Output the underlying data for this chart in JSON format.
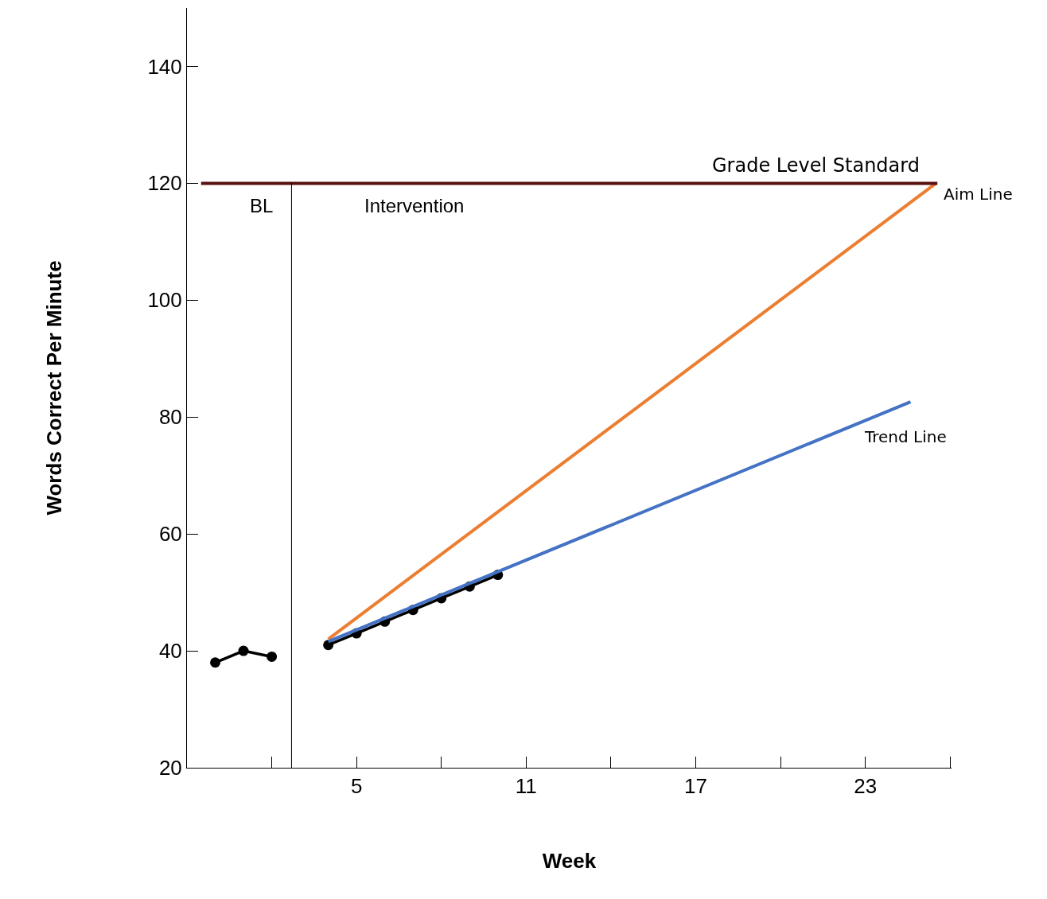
{
  "chart_data": {
    "type": "line",
    "xlabel": "Week",
    "ylabel": "Words Correct Per Minute",
    "series": [
      {
        "x": [
          0,
          1,
          2
        ],
        "values": [
          38,
          40,
          39
        ],
        "color": "#000000",
        "marker": "circle"
      },
      {
        "x": [
          4,
          5,
          6,
          7,
          8,
          9,
          10
        ],
        "values": [
          41,
          43,
          45,
          47,
          49,
          51,
          53
        ],
        "color": "#000000",
        "marker": "circle"
      },
      {
        "name": "Aim Line",
        "x": [
          4,
          25.5
        ],
        "values": [
          42,
          120
        ],
        "color": "#ed7d31",
        "marker": "none"
      },
      {
        "name": "Trend Line",
        "x": [
          4,
          24.6
        ],
        "values": [
          41.6,
          82.6
        ],
        "color": "#4472c4",
        "marker": "none"
      }
    ],
    "ref_lines": [
      {
        "axis": "y",
        "value": 120,
        "label": "Grade Level Standard",
        "color": "#5a1010"
      },
      {
        "axis": "x",
        "value": 2.7,
        "color": "#000000"
      }
    ],
    "annotations": [
      "BL",
      "Intervention"
    ],
    "xlim": [
      -1,
      26.05
    ],
    "xticks": [
      {
        "value": 2,
        "label": null
      },
      5,
      {
        "value": 8,
        "label": null
      },
      11,
      {
        "value": 14,
        "label": null
      },
      17,
      {
        "value": 20,
        "label": null
      },
      23,
      {
        "value": 26,
        "label": null
      }
    ],
    "ylim": [
      20,
      150
    ],
    "yticks": [
      20,
      40,
      60,
      80,
      100,
      120,
      140
    ],
    "legend": false,
    "line_style": "solid"
  }
}
